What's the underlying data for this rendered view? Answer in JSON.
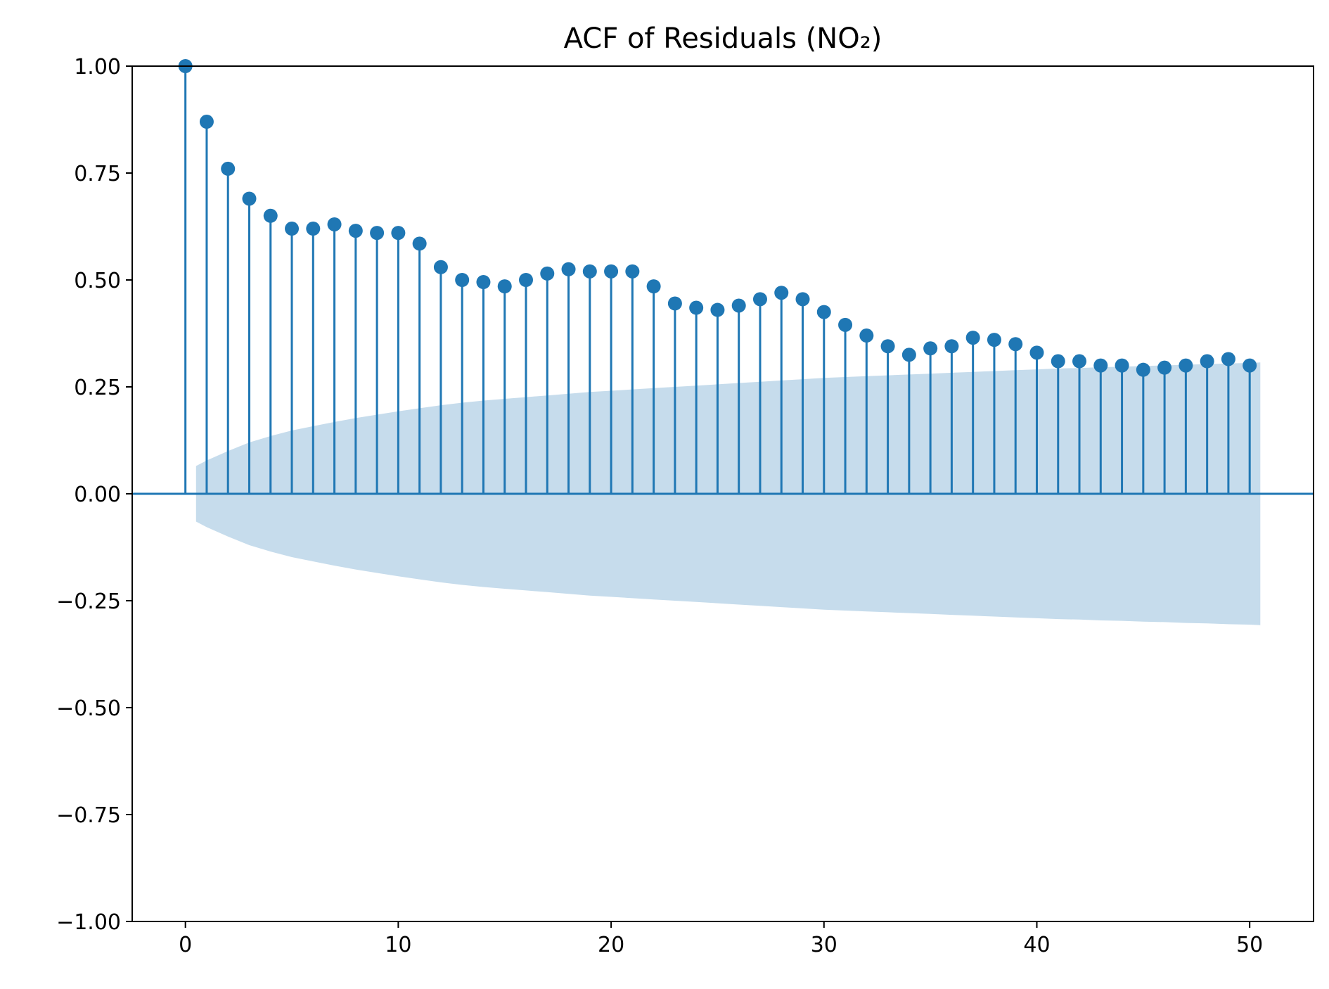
{
  "chart_data": {
    "type": "stem",
    "title": "ACF of Residuals (NO₂)",
    "xlabel": "",
    "ylabel": "",
    "xlim": [
      -2.5,
      53
    ],
    "ylim": [
      -1.0,
      1.0
    ],
    "xticks": [
      0,
      10,
      20,
      30,
      40,
      50
    ],
    "xtick_labels": [
      "0",
      "10",
      "20",
      "30",
      "40",
      "50"
    ],
    "yticks": [
      -1.0,
      -0.75,
      -0.5,
      -0.25,
      0.0,
      0.25,
      0.5,
      0.75,
      1.0
    ],
    "ytick_labels": [
      "−1.00",
      "−0.75",
      "−0.50",
      "−0.25",
      "0.00",
      "0.25",
      "0.50",
      "0.75",
      "1.00"
    ],
    "grid": false,
    "legend": "none",
    "series_color": "#1f77b4",
    "band_color": "#c6dcec",
    "lags": [
      0,
      1,
      2,
      3,
      4,
      5,
      6,
      7,
      8,
      9,
      10,
      11,
      12,
      13,
      14,
      15,
      16,
      17,
      18,
      19,
      20,
      21,
      22,
      23,
      24,
      25,
      26,
      27,
      28,
      29,
      30,
      31,
      32,
      33,
      34,
      35,
      36,
      37,
      38,
      39,
      40,
      41,
      42,
      43,
      44,
      45,
      46,
      47,
      48,
      49,
      50
    ],
    "acf": [
      1.0,
      0.87,
      0.76,
      0.69,
      0.65,
      0.62,
      0.62,
      0.63,
      0.615,
      0.61,
      0.61,
      0.585,
      0.53,
      0.5,
      0.495,
      0.485,
      0.5,
      0.515,
      0.525,
      0.52,
      0.52,
      0.52,
      0.485,
      0.445,
      0.435,
      0.43,
      0.44,
      0.455,
      0.47,
      0.455,
      0.425,
      0.395,
      0.37,
      0.345,
      0.325,
      0.34,
      0.345,
      0.365,
      0.36,
      0.35,
      0.33,
      0.31,
      0.31,
      0.3,
      0.3,
      0.29,
      0.295,
      0.3,
      0.31,
      0.315,
      0.3
    ],
    "confidence_band": {
      "x": [
        0.5,
        1,
        2,
        3,
        4,
        5,
        6,
        7,
        8,
        9,
        10,
        11,
        12,
        13,
        14,
        15,
        16,
        17,
        18,
        19,
        20,
        21,
        22,
        23,
        24,
        25,
        26,
        27,
        28,
        29,
        30,
        31,
        32,
        33,
        34,
        35,
        36,
        37,
        38,
        39,
        40,
        41,
        42,
        43,
        44,
        45,
        46,
        47,
        48,
        49,
        50,
        50.5
      ],
      "upper": [
        0.065,
        0.078,
        0.1,
        0.12,
        0.135,
        0.148,
        0.158,
        0.168,
        0.177,
        0.185,
        0.193,
        0.2,
        0.207,
        0.213,
        0.218,
        0.222,
        0.226,
        0.23,
        0.234,
        0.238,
        0.241,
        0.244,
        0.247,
        0.25,
        0.253,
        0.256,
        0.259,
        0.262,
        0.265,
        0.268,
        0.271,
        0.273,
        0.275,
        0.277,
        0.279,
        0.281,
        0.283,
        0.285,
        0.287,
        0.289,
        0.291,
        0.293,
        0.294,
        0.296,
        0.297,
        0.299,
        0.3,
        0.302,
        0.303,
        0.305,
        0.306,
        0.307
      ]
    }
  }
}
